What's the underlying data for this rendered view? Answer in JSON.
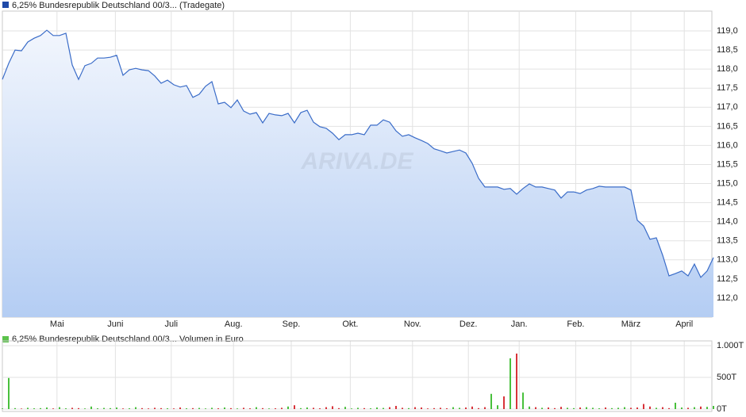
{
  "chart_data": [
    {
      "type": "area",
      "legend": "6,25% Bundesrepublik Deutschland 00/3... (Tradegate)",
      "legend_color": "#1f4aa8",
      "watermark": "ARIVA.DE",
      "color": "#3a6cc8",
      "fill_top": "#f2f6fd",
      "fill_bottom": "#b4cdf3",
      "grid": true,
      "xlim": [
        0,
        111.75
      ],
      "xticks": [
        {
          "value": 8.6,
          "label": "Mai"
        },
        {
          "value": 17.8,
          "label": "Juni"
        },
        {
          "value": 26.6,
          "label": "Juli"
        },
        {
          "value": 36.4,
          "label": "Aug."
        },
        {
          "value": 45.5,
          "label": "Sep."
        },
        {
          "value": 54.8,
          "label": "Okt."
        },
        {
          "value": 64.6,
          "label": "Nov."
        },
        {
          "value": 73.4,
          "label": "Dez."
        },
        {
          "value": 81.4,
          "label": "Jan."
        },
        {
          "value": 90.3,
          "label": "Feb."
        },
        {
          "value": 99,
          "label": "März"
        },
        {
          "value": 107.4,
          "label": "April"
        }
      ],
      "ylim": [
        111.5,
        119.52
      ],
      "yticks": [
        {
          "value": 112,
          "label": "112,0"
        },
        {
          "value": 112.5,
          "label": "112,5"
        },
        {
          "value": 113,
          "label": "113,0"
        },
        {
          "value": 113.5,
          "label": "113,5"
        },
        {
          "value": 114,
          "label": "114,0"
        },
        {
          "value": 114.5,
          "label": "114,5"
        },
        {
          "value": 115,
          "label": "115,0"
        },
        {
          "value": 115.5,
          "label": "115,5"
        },
        {
          "value": 116,
          "label": "116,0"
        },
        {
          "value": 116.5,
          "label": "116,5"
        },
        {
          "value": 117,
          "label": "117,0"
        },
        {
          "value": 117.5,
          "label": "117,5"
        },
        {
          "value": 118,
          "label": "118,0"
        },
        {
          "value": 118.5,
          "label": "118,5"
        },
        {
          "value": 119,
          "label": "119,0"
        }
      ],
      "values": [
        117.73,
        118.15,
        118.5,
        118.48,
        118.71,
        118.81,
        118.88,
        119.02,
        118.88,
        118.88,
        118.94,
        118.11,
        117.73,
        118.09,
        118.15,
        118.29,
        118.29,
        118.31,
        118.36,
        117.84,
        117.98,
        118.02,
        117.98,
        117.96,
        117.82,
        117.63,
        117.71,
        117.59,
        117.53,
        117.57,
        117.26,
        117.34,
        117.55,
        117.67,
        117.09,
        117.13,
        116.99,
        117.19,
        116.9,
        116.82,
        116.86,
        116.59,
        116.84,
        116.8,
        116.78,
        116.84,
        116.59,
        116.86,
        116.92,
        116.61,
        116.49,
        116.45,
        116.32,
        116.15,
        116.28,
        116.28,
        116.32,
        116.28,
        116.53,
        116.53,
        116.67,
        116.61,
        116.38,
        116.24,
        116.28,
        116.2,
        116.13,
        116.05,
        115.91,
        115.86,
        115.8,
        115.84,
        115.88,
        115.8,
        115.53,
        115.14,
        114.91,
        114.91,
        114.91,
        114.85,
        114.87,
        114.72,
        114.87,
        114.99,
        114.91,
        114.91,
        114.87,
        114.83,
        114.62,
        114.78,
        114.78,
        114.74,
        114.83,
        114.87,
        114.93,
        114.91,
        114.91,
        114.91,
        114.91,
        114.83,
        114.04,
        113.89,
        113.54,
        113.58,
        113.12,
        112.58,
        112.64,
        112.71,
        112.58,
        112.89,
        112.54,
        112.71,
        113.06
      ]
    },
    {
      "type": "volume",
      "legend": "6,25% Bundesrepublik Deutschland 00/3... Volumen in Euro",
      "legend_color": "#5cc24c",
      "up_color": "#48c03c",
      "down_color": "#d8333a",
      "grid": true,
      "ylim": [
        0,
        1075000
      ],
      "yticks": [
        {
          "value": 0,
          "label": "0T"
        },
        {
          "value": 500000,
          "label": "500T"
        },
        {
          "value": 1000000,
          "label": "1.000T"
        }
      ],
      "values": [
        10000,
        490000,
        15000,
        8000,
        20000,
        12000,
        15000,
        25000,
        10000,
        30000,
        12000,
        20000,
        15000,
        10000,
        40000,
        12000,
        18000,
        15000,
        25000,
        10000,
        12000,
        30000,
        15000,
        10000,
        20000,
        15000,
        12000,
        10000,
        25000,
        12000,
        15000,
        18000,
        10000,
        20000,
        12000,
        25000,
        15000,
        10000,
        20000,
        12000,
        30000,
        15000,
        10000,
        12000,
        20000,
        40000,
        60000,
        15000,
        25000,
        20000,
        12000,
        30000,
        45000,
        15000,
        35000,
        10000,
        20000,
        15000,
        12000,
        25000,
        18000,
        30000,
        50000,
        20000,
        15000,
        30000,
        25000,
        10000,
        15000,
        20000,
        12000,
        30000,
        20000,
        25000,
        40000,
        15000,
        30000,
        240000,
        60000,
        200000,
        800000,
        875000,
        260000,
        40000,
        30000,
        20000,
        25000,
        15000,
        35000,
        20000,
        15000,
        25000,
        30000,
        20000,
        12000,
        25000,
        15000,
        20000,
        30000,
        20000,
        25000,
        80000,
        40000,
        20000,
        30000,
        15000,
        100000,
        25000,
        20000,
        30000,
        40000,
        35000,
        50000
      ]
    }
  ]
}
